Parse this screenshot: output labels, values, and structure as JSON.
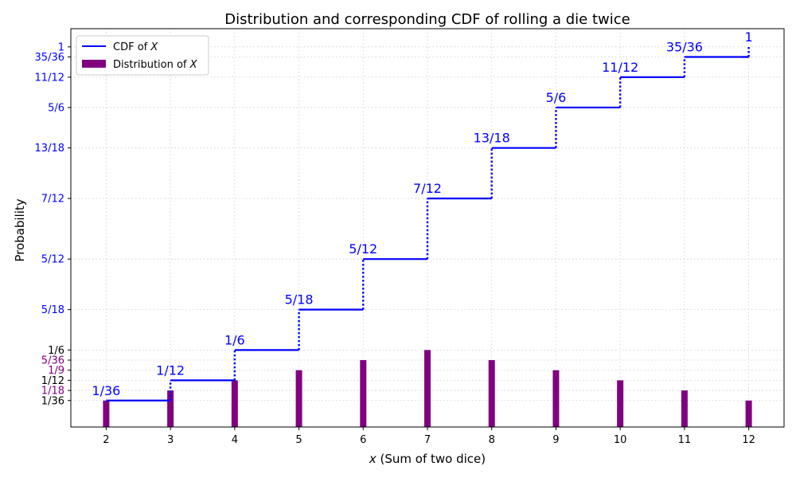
{
  "chart_data": {
    "type": "bar",
    "title": "Distribution and corresponding CDF of rolling a die twice",
    "xlabel_var": "x",
    "xlabel_rest": " (Sum of two dice)",
    "ylabel": "Probability",
    "xlim": [
      1.45,
      12.55
    ],
    "ylim": [
      -0.045,
      1.05
    ],
    "grid": true,
    "legend_position": "top-left",
    "x": [
      2,
      3,
      4,
      5,
      6,
      7,
      8,
      9,
      10,
      11,
      12
    ],
    "x_tick_labels": [
      "2",
      "3",
      "4",
      "5",
      "6",
      "7",
      "8",
      "9",
      "10",
      "11",
      "12"
    ],
    "series": [
      {
        "name_prefix": "CDF of ",
        "name_var": "X",
        "type": "step",
        "color": "#0000ff",
        "values": [
          0.027778,
          0.083333,
          0.166667,
          0.277778,
          0.416667,
          0.583333,
          0.722222,
          0.833333,
          0.916667,
          0.972222,
          1.0
        ],
        "labels": [
          "1/36",
          "1/12",
          "1/6",
          "5/18",
          "5/12",
          "7/12",
          "13/18",
          "5/6",
          "11/12",
          "35/36",
          "1"
        ]
      },
      {
        "name_prefix": "Distribution of ",
        "name_var": "X",
        "type": "bar",
        "color": "#800080",
        "values": [
          0.027778,
          0.055556,
          0.083333,
          0.111111,
          0.138889,
          0.166667,
          0.138889,
          0.111111,
          0.083333,
          0.055556,
          0.027778
        ]
      }
    ],
    "y_ticks": [
      {
        "value": 0.027778,
        "label": "1/36",
        "color": "#000000"
      },
      {
        "value": 0.055556,
        "label": "1/18",
        "color": "#800080"
      },
      {
        "value": 0.083333,
        "label": "1/12",
        "color": "#000000"
      },
      {
        "value": 0.111111,
        "label": "1/9",
        "color": "#800080"
      },
      {
        "value": 0.138889,
        "label": "5/36",
        "color": "#800080"
      },
      {
        "value": 0.166667,
        "label": "1/6",
        "color": "#000000"
      },
      {
        "value": 0.277778,
        "label": "5/18",
        "color": "#0000ff"
      },
      {
        "value": 0.416667,
        "label": "5/12",
        "color": "#0000ff"
      },
      {
        "value": 0.583333,
        "label": "7/12",
        "color": "#0000ff"
      },
      {
        "value": 0.722222,
        "label": "13/18",
        "color": "#0000ff"
      },
      {
        "value": 0.833333,
        "label": "5/6",
        "color": "#0000ff"
      },
      {
        "value": 0.916667,
        "label": "11/12",
        "color": "#0000ff"
      },
      {
        "value": 0.972222,
        "label": "35/36",
        "color": "#0000ff"
      },
      {
        "value": 1.0,
        "label": "1",
        "color": "#0000ff"
      }
    ]
  }
}
